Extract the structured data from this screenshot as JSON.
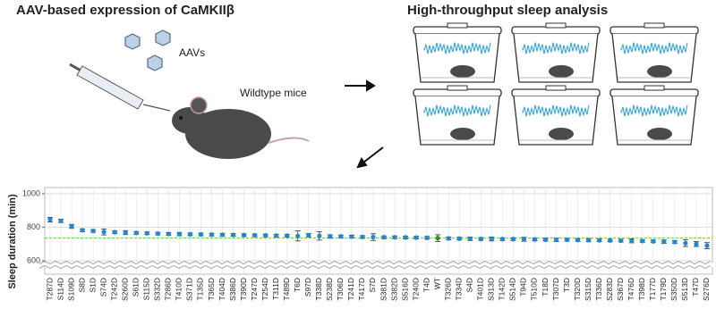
{
  "header": {
    "left_title": "AAV-based expression of CaMKIIβ",
    "virus_label": "AAVs",
    "mouse_label": "Wildtype mice",
    "right_title": "High-throughput sleep analysis"
  },
  "chart_data": {
    "type": "dot_error",
    "y_label": "Sleep duration (min)",
    "categories": [
      "T287D",
      "S114D",
      "S109D",
      "S8D",
      "S1D",
      "S74D",
      "T242D",
      "S260D",
      "S61D",
      "S115D",
      "S332D",
      "T286D",
      "T410D",
      "S371D",
      "T135D",
      "T365D",
      "T404D",
      "S386D",
      "T390D",
      "T247D",
      "T254D",
      "T311D",
      "T489D",
      "T6D",
      "S97D",
      "T338D",
      "S238D",
      "T306D",
      "T241D",
      "T417D",
      "S7D",
      "S381D",
      "S382D",
      "S516D",
      "T240D",
      "T4D",
      "WT",
      "T326D",
      "T334D",
      "S4D",
      "T401D",
      "S313D",
      "T142D",
      "S514D",
      "T94D",
      "T510D",
      "T18D",
      "T307D",
      "T3D",
      "T320D",
      "S315D",
      "T336D",
      "S283D",
      "S367D",
      "T476D",
      "T398D",
      "T177D",
      "T179D",
      "S350D",
      "S513D",
      "T47D",
      "S276D"
    ],
    "values": [
      845,
      838,
      805,
      782,
      778,
      772,
      770,
      768,
      766,
      764,
      762,
      760,
      759,
      758,
      757,
      756,
      755,
      754,
      753,
      752,
      751,
      750,
      749,
      748,
      752,
      748,
      745,
      745,
      744,
      742,
      741,
      740,
      740,
      739,
      738,
      737,
      735,
      733,
      732,
      731,
      730,
      730,
      729,
      729,
      728,
      727,
      726,
      725,
      725,
      724,
      723,
      722,
      721,
      720,
      719,
      718,
      716,
      714,
      712,
      705,
      700,
      690
    ],
    "errors": [
      14,
      10,
      12,
      8,
      8,
      18,
      8,
      12,
      8,
      8,
      8,
      8,
      10,
      8,
      8,
      8,
      8,
      8,
      8,
      8,
      8,
      8,
      8,
      30,
      10,
      25,
      10,
      8,
      8,
      8,
      20,
      8,
      8,
      8,
      8,
      8,
      20,
      8,
      8,
      10,
      8,
      12,
      8,
      8,
      12,
      8,
      8,
      10,
      8,
      8,
      10,
      8,
      8,
      8,
      12,
      8,
      8,
      10,
      8,
      20,
      15,
      18
    ],
    "color": "#1f86d8",
    "point_colors": [
      "#1f86d8",
      "#1f86d8",
      "#1f86d8",
      "#1f86d8",
      "#1f86d8",
      "#1f86d8",
      "#1f86d8",
      "#1f86d8",
      "#1f86d8",
      "#1f86d8",
      "#1f86d8",
      "#1f86d8",
      "#1f86d8",
      "#1f86d8",
      "#1f86d8",
      "#1f86d8",
      "#1f86d8",
      "#1f86d8",
      "#1f86d8",
      "#1f86d8",
      "#1f86d8",
      "#1f86d8",
      "#1f86d8",
      "#1f86d8",
      "#1f86d8",
      "#1f86d8",
      "#1f86d8",
      "#1f86d8",
      "#1f86d8",
      "#1f86d8",
      "#1f86d8",
      "#1f86d8",
      "#1f86d8",
      "#1f86d8",
      "#1f86d8",
      "#1f86d8",
      "#2e8b2e",
      "#1f86d8",
      "#1f86d8",
      "#1f86d8",
      "#1f86d8",
      "#1f86d8",
      "#1f86d8",
      "#1f86d8",
      "#1f86d8",
      "#1f86d8",
      "#1f86d8",
      "#1f86d8",
      "#1f86d8",
      "#1f86d8",
      "#1f86d8",
      "#1f86d8",
      "#1f86d8",
      "#1f86d8",
      "#1f86d8",
      "#1f86d8",
      "#1f86d8",
      "#1f86d8",
      "#1f86d8",
      "#1f86d8",
      "#1f86d8",
      "#1f86d8"
    ],
    "label_colors": [
      "#e0252b",
      "#e0252b",
      "#e0252b",
      "#333",
      "#333",
      "#333",
      "#333",
      "#333",
      "#333",
      "#333",
      "#333",
      "#333",
      "#333",
      "#333",
      "#333",
      "#333",
      "#333",
      "#333",
      "#333",
      "#333",
      "#333",
      "#333",
      "#333",
      "#333",
      "#333",
      "#333",
      "#333",
      "#333",
      "#333",
      "#333",
      "#333",
      "#333",
      "#333",
      "#333",
      "#333",
      "#333",
      "#2e9b2e",
      "#333",
      "#333",
      "#333",
      "#333",
      "#333",
      "#333",
      "#333",
      "#333",
      "#333",
      "#333",
      "#333",
      "#333",
      "#333",
      "#333",
      "#333",
      "#333",
      "#333",
      "#333",
      "#333",
      "#333",
      "#333",
      "#333",
      "#333",
      "#333",
      "#333"
    ],
    "reference_line": {
      "value": 735,
      "color": "#6cc24a"
    },
    "ylim": [
      520,
      1037
    ],
    "yticks": [
      600,
      800,
      1000
    ],
    "grid": true
  }
}
